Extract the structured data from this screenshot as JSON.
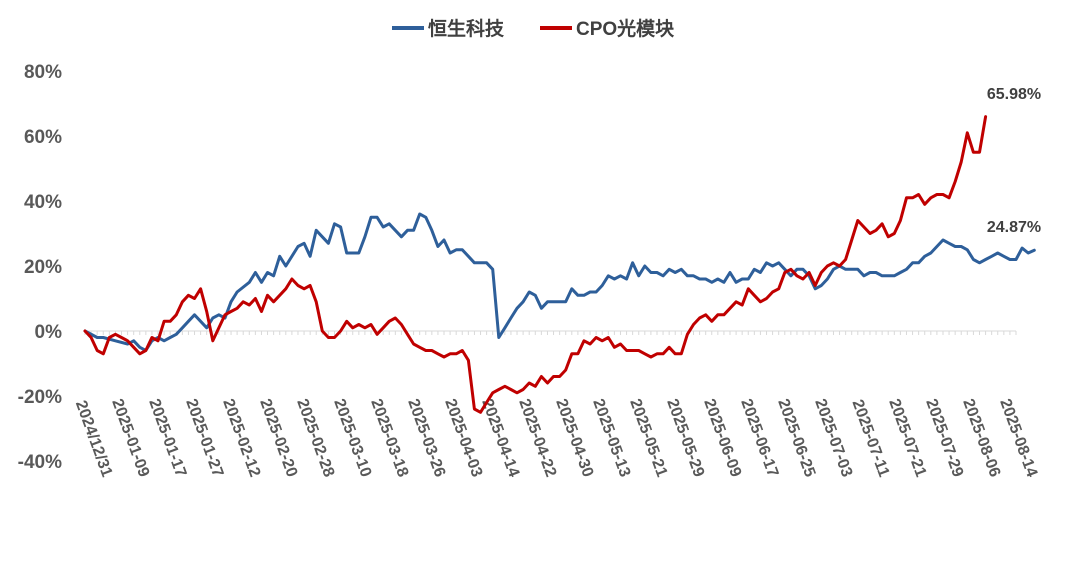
{
  "chart_data": {
    "type": "line",
    "title": "",
    "xlabel": "",
    "ylabel": "",
    "ylim": [
      -40,
      80
    ],
    "y_ticks": [
      "80%",
      "60%",
      "40%",
      "20%",
      "0%",
      "-20%",
      "-40%"
    ],
    "y_tick_values": [
      80,
      60,
      40,
      20,
      0,
      -20,
      -40
    ],
    "x_ticks": [
      "2024/12/31",
      "2025-01-09",
      "2025-01-17",
      "2025-01-27",
      "2025-02-12",
      "2025-02-20",
      "2025-02-28",
      "2025-03-10",
      "2025-03-18",
      "2025-03-26",
      "2025-04-03",
      "2025-04-14",
      "2025-04-22",
      "2025-04-30",
      "2025-05-13",
      "2025-05-21",
      "2025-05-29",
      "2025-06-09",
      "2025-06-17",
      "2025-06-25",
      "2025-07-03",
      "2025-07-11",
      "2025-07-21",
      "2025-07-29",
      "2025-08-06",
      "2025-08-14"
    ],
    "n_points": 154,
    "legend_position": "top",
    "grid": false,
    "series": [
      {
        "name": "恒生科技",
        "color": "#2e5f9a",
        "end_label": "24.87%",
        "points": [
          [
            0,
            0
          ],
          [
            2,
            -2
          ],
          [
            3,
            -2
          ],
          [
            5,
            -3
          ],
          [
            7,
            -4
          ],
          [
            8,
            -3
          ],
          [
            9,
            -5
          ],
          [
            10,
            -6
          ],
          [
            11,
            -3
          ],
          [
            12,
            -2
          ],
          [
            13,
            -3
          ],
          [
            14,
            -2
          ],
          [
            15,
            -1
          ],
          [
            16,
            1
          ],
          [
            17,
            3
          ],
          [
            18,
            5
          ],
          [
            19,
            3
          ],
          [
            20,
            1
          ],
          [
            21,
            4
          ],
          [
            22,
            5
          ],
          [
            23,
            4
          ],
          [
            24,
            9
          ],
          [
            25,
            12
          ],
          [
            27,
            15
          ],
          [
            28,
            18
          ],
          [
            29,
            15
          ],
          [
            30,
            18
          ],
          [
            31,
            17
          ],
          [
            32,
            23
          ],
          [
            33,
            20
          ],
          [
            35,
            26
          ],
          [
            36,
            27
          ],
          [
            37,
            23
          ],
          [
            38,
            31
          ],
          [
            39,
            29
          ],
          [
            40,
            27
          ],
          [
            41,
            33
          ],
          [
            42,
            32
          ],
          [
            43,
            24
          ],
          [
            44,
            24
          ],
          [
            45,
            24
          ],
          [
            46,
            29
          ],
          [
            47,
            35
          ],
          [
            48,
            35
          ],
          [
            49,
            32
          ],
          [
            50,
            33
          ],
          [
            51,
            31
          ],
          [
            52,
            29
          ],
          [
            53,
            31
          ],
          [
            54,
            31
          ],
          [
            55,
            36
          ],
          [
            56,
            35
          ],
          [
            57,
            31
          ],
          [
            58,
            26
          ],
          [
            59,
            28
          ],
          [
            60,
            24
          ],
          [
            61,
            25
          ],
          [
            62,
            25
          ],
          [
            63,
            23
          ],
          [
            64,
            21
          ],
          [
            65,
            21
          ],
          [
            66,
            21
          ],
          [
            67,
            19
          ],
          [
            68,
            -2
          ],
          [
            69,
            1
          ],
          [
            70,
            4
          ],
          [
            71,
            7
          ],
          [
            72,
            9
          ],
          [
            73,
            12
          ],
          [
            74,
            11
          ],
          [
            75,
            7
          ],
          [
            76,
            9
          ],
          [
            77,
            9
          ],
          [
            78,
            9
          ],
          [
            79,
            9
          ],
          [
            80,
            13
          ],
          [
            81,
            11
          ],
          [
            82,
            11
          ],
          [
            83,
            12
          ],
          [
            84,
            12
          ],
          [
            85,
            14
          ],
          [
            86,
            17
          ],
          [
            87,
            16
          ],
          [
            88,
            17
          ],
          [
            89,
            16
          ],
          [
            90,
            21
          ],
          [
            91,
            17
          ],
          [
            92,
            20
          ],
          [
            93,
            18
          ],
          [
            94,
            18
          ],
          [
            95,
            17
          ],
          [
            96,
            19
          ],
          [
            97,
            18
          ],
          [
            98,
            19
          ],
          [
            99,
            17
          ],
          [
            100,
            17
          ],
          [
            101,
            16
          ],
          [
            102,
            16
          ],
          [
            103,
            15
          ],
          [
            104,
            16
          ],
          [
            105,
            15
          ],
          [
            106,
            18
          ],
          [
            107,
            15
          ],
          [
            108,
            16
          ],
          [
            109,
            16
          ],
          [
            110,
            19
          ],
          [
            111,
            18
          ],
          [
            112,
            21
          ],
          [
            113,
            20
          ],
          [
            114,
            21
          ],
          [
            115,
            19
          ],
          [
            116,
            17
          ],
          [
            117,
            19
          ],
          [
            118,
            19
          ],
          [
            119,
            17
          ],
          [
            120,
            13
          ],
          [
            121,
            14
          ],
          [
            122,
            16
          ],
          [
            123,
            19
          ],
          [
            124,
            20
          ],
          [
            125,
            19
          ],
          [
            126,
            19
          ],
          [
            127,
            19
          ],
          [
            128,
            17
          ],
          [
            129,
            18
          ],
          [
            130,
            18
          ],
          [
            131,
            17
          ],
          [
            132,
            17
          ],
          [
            133,
            17
          ],
          [
            134,
            18
          ],
          [
            135,
            19
          ],
          [
            136,
            21
          ],
          [
            137,
            21
          ],
          [
            138,
            23
          ],
          [
            139,
            24
          ],
          [
            140,
            26
          ],
          [
            141,
            28
          ],
          [
            142,
            27
          ],
          [
            143,
            26
          ],
          [
            144,
            26
          ],
          [
            145,
            25
          ],
          [
            146,
            22
          ],
          [
            147,
            21
          ],
          [
            148,
            22
          ],
          [
            149,
            23
          ],
          [
            150,
            24
          ],
          [
            151,
            23
          ],
          [
            152,
            22
          ],
          [
            153,
            22
          ],
          [
            154,
            25.5
          ],
          [
            155,
            24
          ],
          [
            156,
            24.87
          ]
        ]
      },
      {
        "name": "CPO光模块",
        "color": "#c00000",
        "end_label": "65.98%",
        "points": [
          [
            0,
            0
          ],
          [
            1,
            -2
          ],
          [
            2,
            -6
          ],
          [
            3,
            -7
          ],
          [
            4,
            -2
          ],
          [
            5,
            -1
          ],
          [
            6,
            -2
          ],
          [
            7,
            -3
          ],
          [
            8,
            -5
          ],
          [
            9,
            -7
          ],
          [
            10,
            -6
          ],
          [
            11,
            -2
          ],
          [
            12,
            -3
          ],
          [
            13,
            3
          ],
          [
            14,
            3
          ],
          [
            15,
            5
          ],
          [
            16,
            9
          ],
          [
            17,
            11
          ],
          [
            18,
            10
          ],
          [
            19,
            13
          ],
          [
            20,
            6
          ],
          [
            21,
            -3
          ],
          [
            22,
            1
          ],
          [
            23,
            5
          ],
          [
            24,
            6
          ],
          [
            25,
            7
          ],
          [
            26,
            9
          ],
          [
            27,
            8
          ],
          [
            28,
            10
          ],
          [
            29,
            6
          ],
          [
            30,
            11
          ],
          [
            31,
            9
          ],
          [
            32,
            11
          ],
          [
            33,
            13
          ],
          [
            34,
            16
          ],
          [
            35,
            14
          ],
          [
            36,
            13
          ],
          [
            37,
            14
          ],
          [
            38,
            9
          ],
          [
            39,
            0
          ],
          [
            40,
            -2
          ],
          [
            41,
            -2
          ],
          [
            42,
            0
          ],
          [
            43,
            3
          ],
          [
            44,
            1
          ],
          [
            45,
            2
          ],
          [
            46,
            1
          ],
          [
            47,
            2
          ],
          [
            48,
            -1
          ],
          [
            49,
            1
          ],
          [
            50,
            3
          ],
          [
            51,
            4
          ],
          [
            52,
            2
          ],
          [
            53,
            -1
          ],
          [
            54,
            -4
          ],
          [
            55,
            -5
          ],
          [
            56,
            -6
          ],
          [
            57,
            -6
          ],
          [
            58,
            -7
          ],
          [
            59,
            -8
          ],
          [
            60,
            -7
          ],
          [
            61,
            -7
          ],
          [
            62,
            -6
          ],
          [
            63,
            -9
          ],
          [
            64,
            -24
          ],
          [
            65,
            -25
          ],
          [
            66,
            -22
          ],
          [
            67,
            -19
          ],
          [
            68,
            -18
          ],
          [
            69,
            -17
          ],
          [
            70,
            -18
          ],
          [
            71,
            -19
          ],
          [
            72,
            -18
          ],
          [
            73,
            -16
          ],
          [
            74,
            -17
          ],
          [
            75,
            -14
          ],
          [
            76,
            -16
          ],
          [
            77,
            -14
          ],
          [
            78,
            -14
          ],
          [
            79,
            -12
          ],
          [
            80,
            -7
          ],
          [
            81,
            -7
          ],
          [
            82,
            -3
          ],
          [
            83,
            -4
          ],
          [
            84,
            -2
          ],
          [
            85,
            -3
          ],
          [
            86,
            -2
          ],
          [
            87,
            -5
          ],
          [
            88,
            -4
          ],
          [
            89,
            -6
          ],
          [
            90,
            -6
          ],
          [
            91,
            -6
          ],
          [
            92,
            -7
          ],
          [
            93,
            -8
          ],
          [
            94,
            -7
          ],
          [
            95,
            -7
          ],
          [
            96,
            -5
          ],
          [
            97,
            -7
          ],
          [
            98,
            -7
          ],
          [
            99,
            -1
          ],
          [
            100,
            2
          ],
          [
            101,
            4
          ],
          [
            102,
            5
          ],
          [
            103,
            3
          ],
          [
            104,
            5
          ],
          [
            105,
            5
          ],
          [
            106,
            7
          ],
          [
            107,
            9
          ],
          [
            108,
            8
          ],
          [
            109,
            13
          ],
          [
            110,
            11
          ],
          [
            111,
            9
          ],
          [
            112,
            10
          ],
          [
            113,
            12
          ],
          [
            114,
            13
          ],
          [
            115,
            18
          ],
          [
            116,
            19
          ],
          [
            117,
            17
          ],
          [
            118,
            16
          ],
          [
            119,
            18
          ],
          [
            120,
            14
          ],
          [
            121,
            18
          ],
          [
            122,
            20
          ],
          [
            123,
            21
          ],
          [
            124,
            20
          ],
          [
            125,
            22
          ],
          [
            126,
            28
          ],
          [
            127,
            34
          ],
          [
            128,
            32
          ],
          [
            129,
            30
          ],
          [
            130,
            31
          ],
          [
            131,
            33
          ],
          [
            132,
            29
          ],
          [
            133,
            30
          ],
          [
            134,
            34
          ],
          [
            135,
            41
          ],
          [
            136,
            41
          ],
          [
            137,
            42
          ],
          [
            138,
            39
          ],
          [
            139,
            41
          ],
          [
            140,
            42
          ],
          [
            141,
            42
          ],
          [
            142,
            41
          ],
          [
            143,
            46
          ],
          [
            144,
            52
          ],
          [
            145,
            61
          ],
          [
            146,
            55
          ],
          [
            147,
            55
          ],
          [
            148,
            65.98
          ]
        ]
      }
    ]
  }
}
